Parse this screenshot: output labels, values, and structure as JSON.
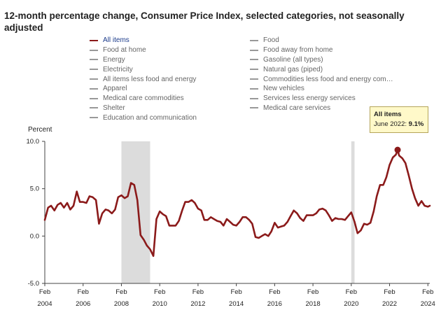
{
  "chart_data": {
    "type": "line",
    "title": "12-month percentage change, Consumer Price Index, selected categories, not seasonally adjusted",
    "ylabel": "Percent",
    "ylim": [
      -5.0,
      10.0
    ],
    "yticks": [
      "10.0",
      "5.0",
      "0.0",
      "-5.0"
    ],
    "yticks_values": [
      10,
      5,
      0,
      -5
    ],
    "xlim": [
      2004.0,
      2024.1
    ],
    "xticks": [
      {
        "month": "Feb",
        "year": "2004",
        "x": 2004.0
      },
      {
        "month": "Feb",
        "year": "2006",
        "x": 2006.0
      },
      {
        "month": "Feb",
        "year": "2008",
        "x": 2008.0
      },
      {
        "month": "Feb",
        "year": "2010",
        "x": 2010.0
      },
      {
        "month": "Feb",
        "year": "2012",
        "x": 2012.0
      },
      {
        "month": "Feb",
        "year": "2014",
        "x": 2014.0
      },
      {
        "month": "Feb",
        "year": "2016",
        "x": 2016.0
      },
      {
        "month": "Feb",
        "year": "2018",
        "x": 2018.0
      },
      {
        "month": "Feb",
        "year": "2020",
        "x": 2020.0
      },
      {
        "month": "Feb",
        "year": "2022",
        "x": 2022.0
      },
      {
        "month": "Feb",
        "year": "2024",
        "x": 2024.0
      }
    ],
    "recessions": [
      {
        "start": 2008.0,
        "end": 2009.5
      },
      {
        "start": 2020.0,
        "end": 2020.17
      }
    ],
    "grid": false,
    "legend_placement": "top",
    "colors": {
      "all_items": "#8b1a1a",
      "recession": "#dcdcdc",
      "inactive": "#999999"
    },
    "series": [
      {
        "name": "All items",
        "x": [
          2004.0,
          2004.17,
          2004.33,
          2004.5,
          2004.67,
          2004.83,
          2005.0,
          2005.17,
          2005.33,
          2005.5,
          2005.67,
          2005.83,
          2006.0,
          2006.17,
          2006.33,
          2006.5,
          2006.67,
          2006.83,
          2007.0,
          2007.17,
          2007.33,
          2007.5,
          2007.67,
          2007.83,
          2008.0,
          2008.17,
          2008.33,
          2008.5,
          2008.67,
          2008.83,
          2009.0,
          2009.17,
          2009.33,
          2009.5,
          2009.67,
          2009.83,
          2010.0,
          2010.17,
          2010.33,
          2010.5,
          2010.67,
          2010.83,
          2011.0,
          2011.17,
          2011.33,
          2011.5,
          2011.67,
          2011.83,
          2012.0,
          2012.17,
          2012.33,
          2012.5,
          2012.67,
          2012.83,
          2013.0,
          2013.17,
          2013.33,
          2013.5,
          2013.67,
          2013.83,
          2014.0,
          2014.17,
          2014.33,
          2014.5,
          2014.67,
          2014.83,
          2015.0,
          2015.17,
          2015.33,
          2015.5,
          2015.67,
          2015.83,
          2016.0,
          2016.17,
          2016.33,
          2016.5,
          2016.67,
          2016.83,
          2017.0,
          2017.17,
          2017.33,
          2017.5,
          2017.67,
          2017.83,
          2018.0,
          2018.17,
          2018.33,
          2018.5,
          2018.67,
          2018.83,
          2019.0,
          2019.17,
          2019.33,
          2019.5,
          2019.67,
          2019.83,
          2020.0,
          2020.17,
          2020.33,
          2020.5,
          2020.67,
          2020.83,
          2021.0,
          2021.17,
          2021.33,
          2021.5,
          2021.67,
          2021.83,
          2022.0,
          2022.17,
          2022.33,
          2022.42,
          2022.5,
          2022.67,
          2022.83,
          2023.0,
          2023.17,
          2023.33,
          2023.5,
          2023.67,
          2023.83,
          2024.0,
          2024.1
        ],
        "values": [
          1.7,
          3.0,
          3.2,
          2.7,
          3.3,
          3.5,
          3.0,
          3.5,
          2.8,
          3.2,
          4.7,
          3.6,
          3.6,
          3.5,
          4.2,
          4.1,
          3.8,
          1.3,
          2.4,
          2.8,
          2.7,
          2.4,
          2.8,
          4.1,
          4.3,
          4.0,
          4.2,
          5.6,
          5.4,
          3.8,
          0.1,
          -0.4,
          -1.0,
          -1.4,
          -2.1,
          1.8,
          2.6,
          2.3,
          2.1,
          1.1,
          1.1,
          1.1,
          1.6,
          2.7,
          3.6,
          3.6,
          3.8,
          3.5,
          2.9,
          2.7,
          1.7,
          1.7,
          2.0,
          1.8,
          1.6,
          1.5,
          1.1,
          1.8,
          1.5,
          1.2,
          1.1,
          1.5,
          2.0,
          2.0,
          1.7,
          1.3,
          -0.1,
          -0.2,
          0.0,
          0.2,
          0.0,
          0.5,
          1.4,
          0.9,
          1.0,
          1.1,
          1.5,
          2.1,
          2.7,
          2.4,
          1.9,
          1.6,
          2.2,
          2.2,
          2.2,
          2.4,
          2.8,
          2.9,
          2.7,
          2.2,
          1.6,
          1.9,
          1.8,
          1.8,
          1.7,
          2.1,
          2.5,
          1.5,
          0.3,
          0.6,
          1.3,
          1.2,
          1.4,
          2.6,
          4.2,
          5.4,
          5.4,
          6.2,
          7.5,
          8.3,
          8.6,
          9.1,
          8.5,
          8.2,
          7.7,
          6.4,
          5.0,
          4.0,
          3.2,
          3.7,
          3.2,
          3.1,
          3.2
        ]
      }
    ],
    "highlight": {
      "series": "All items",
      "label": "June 2022",
      "value": "9.1%",
      "x": 2022.42,
      "y": 9.1
    }
  },
  "legend": [
    {
      "label": "All items",
      "active": true
    },
    {
      "label": "Food",
      "active": false
    },
    {
      "label": "Food at home",
      "active": false
    },
    {
      "label": "Food away from home",
      "active": false
    },
    {
      "label": "Energy",
      "active": false
    },
    {
      "label": "Gasoline (all types)",
      "active": false
    },
    {
      "label": "Electricity",
      "active": false
    },
    {
      "label": "Natural gas (piped)",
      "active": false
    },
    {
      "label": "All items less food and energy",
      "active": false
    },
    {
      "label": "Commodities less food and energy com…",
      "active": false
    },
    {
      "label": "Apparel",
      "active": false
    },
    {
      "label": "New vehicles",
      "active": false
    },
    {
      "label": "Medical care commodities",
      "active": false
    },
    {
      "label": "Services less energy services",
      "active": false
    },
    {
      "label": "Shelter",
      "active": false
    },
    {
      "label": "Medical care services",
      "active": false
    },
    {
      "label": "Education and communication",
      "active": false
    }
  ],
  "tooltip": {
    "title": "All items",
    "label": "June 2022: ",
    "value": "9.1%"
  }
}
